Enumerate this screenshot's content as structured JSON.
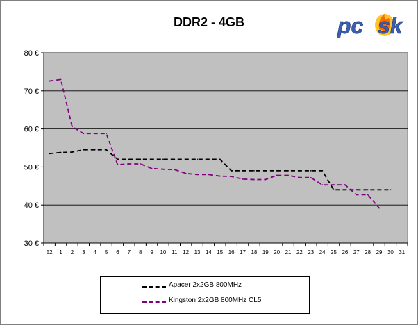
{
  "chart_data": {
    "type": "line",
    "title": "DDR2 - 4GB",
    "xlabel": "",
    "ylabel": "",
    "y_unit": "€",
    "ylim": [
      30,
      80
    ],
    "yticks": [
      30,
      40,
      50,
      60,
      70,
      80
    ],
    "ytick_labels": [
      "30 €",
      "40 €",
      "50 €",
      "60 €",
      "70 €",
      "80 €"
    ],
    "categories": [
      "52",
      "1",
      "2",
      "3",
      "4",
      "5",
      "6",
      "7",
      "8",
      "9",
      "10",
      "11",
      "12",
      "13",
      "14",
      "15",
      "16",
      "17",
      "18",
      "19",
      "20",
      "21",
      "22",
      "23",
      "24",
      "25",
      "26",
      "27",
      "28",
      "29",
      "30",
      "31"
    ],
    "grid": true,
    "legend_position": "bottom",
    "background": "#c0c0c0",
    "series": [
      {
        "name": "Apacer 2x2GB 800MHz",
        "color": "#000000",
        "values": [
          53.5,
          53.8,
          53.9,
          54.5,
          54.5,
          54.5,
          52,
          52,
          52,
          52,
          52,
          52,
          52,
          52,
          52,
          52,
          49,
          49,
          49,
          49,
          49,
          49,
          49,
          49,
          49,
          44,
          44,
          44,
          44,
          44,
          44,
          null
        ]
      },
      {
        "name": "Kingston 2x2GB 800MHz CL5",
        "color": "#800080",
        "values": [
          72.6,
          73,
          60.6,
          58.8,
          58.8,
          58.8,
          50.6,
          50.8,
          50.8,
          49.6,
          49.4,
          49.3,
          48.3,
          48,
          48,
          47.6,
          47.5,
          46.8,
          46.7,
          46.7,
          47.8,
          47.8,
          47.2,
          47.2,
          45.3,
          45.3,
          45.3,
          42.7,
          42.7,
          39.2,
          null,
          null
        ]
      }
    ]
  },
  "logo": {
    "text": "pcask"
  }
}
